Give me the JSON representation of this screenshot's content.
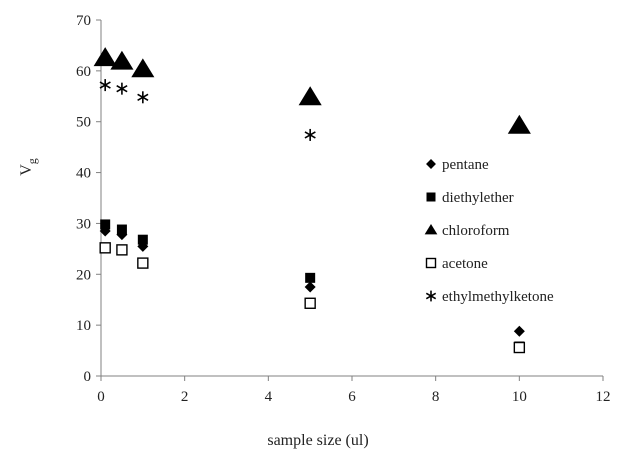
{
  "chart_data": {
    "type": "scatter",
    "title": "",
    "xlabel": "sample size (ul)",
    "ylabel": "V",
    "ylabel_subscript": "g",
    "xlim": [
      0,
      12
    ],
    "ylim": [
      0,
      70
    ],
    "xticks": [
      "0",
      "2",
      "4",
      "6",
      "8",
      "10",
      "12"
    ],
    "yticks": [
      "0",
      "10",
      "20",
      "30",
      "40",
      "50",
      "60",
      "70"
    ],
    "grid": false,
    "legend_position": "right",
    "series": [
      {
        "name": "pentane",
        "marker": "diamond",
        "x": [
          0.1,
          0.5,
          1,
          5,
          10
        ],
        "y": [
          28.5,
          27.8,
          25.5,
          17.5,
          8.8
        ]
      },
      {
        "name": "diethylether",
        "marker": "square",
        "x": [
          0.1,
          0.5,
          1,
          5,
          10
        ],
        "y": [
          29.8,
          28.8,
          26.8,
          19.3,
          5.8
        ]
      },
      {
        "name": "chloroform",
        "marker": "triangle",
        "x": [
          0.1,
          0.5,
          1,
          5,
          10
        ],
        "y": [
          62.5,
          61.8,
          60.3,
          54.8,
          49.2
        ]
      },
      {
        "name": "acetone",
        "marker": "open-square",
        "x": [
          0.1,
          0.5,
          1,
          5,
          10
        ],
        "y": [
          25.2,
          24.8,
          22.2,
          14.3,
          5.6
        ]
      },
      {
        "name": "ethylmethylketone",
        "marker": "asterisk",
        "x": [
          0.1,
          0.5,
          1,
          5
        ],
        "y": [
          57.2,
          56.5,
          54.8,
          47.4
        ]
      }
    ]
  }
}
